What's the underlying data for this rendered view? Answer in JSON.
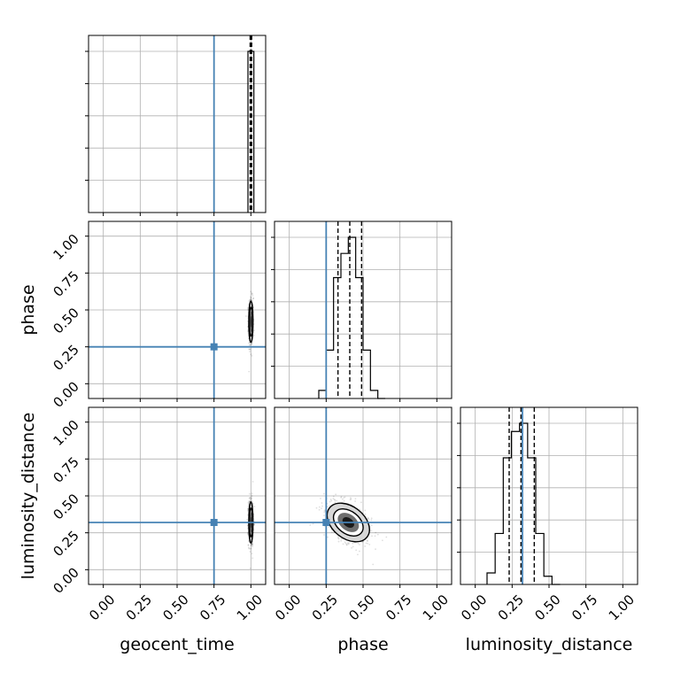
{
  "chart_data": {
    "type": "corner",
    "parameters": [
      "geocent_time",
      "phase",
      "luminosity_distance"
    ],
    "tick_values": [
      0.0,
      0.25,
      0.5,
      0.75,
      1.0
    ],
    "tick_labels": [
      "0.00",
      "0.25",
      "0.50",
      "0.75",
      "1.00"
    ],
    "axis_range": [
      -0.1,
      1.1
    ],
    "grid": true,
    "truths": {
      "geocent_time": 0.75,
      "phase": 0.25,
      "luminosity_distance": 0.32
    },
    "truth_color": "#4682b4",
    "histograms": {
      "geocent_time": {
        "bin_edges": [
          0.98,
          1.02
        ],
        "counts": [
          1.0
        ],
        "quantiles": [
          0.995,
          1.0,
          1.005
        ]
      },
      "phase": {
        "bin_edges": [
          0.2,
          0.25,
          0.3,
          0.35,
          0.4,
          0.45,
          0.5,
          0.55,
          0.6,
          0.65
        ],
        "counts": [
          0.05,
          0.3,
          0.75,
          0.9,
          1.0,
          0.75,
          0.3,
          0.05,
          0.0
        ],
        "quantiles": [
          0.33,
          0.41,
          0.49
        ]
      },
      "luminosity_distance": {
        "bin_edges": [
          0.08,
          0.135,
          0.19,
          0.245,
          0.3,
          0.355,
          0.41,
          0.465,
          0.52,
          0.575
        ],
        "counts": [
          0.07,
          0.31,
          0.77,
          0.93,
          0.98,
          0.77,
          0.31,
          0.05,
          0.0
        ],
        "quantiles": [
          0.23,
          0.31,
          0.4
        ]
      }
    },
    "joint": [
      {
        "x": "geocent_time",
        "y": "phase",
        "center": [
          1.0,
          0.42
        ],
        "spread": [
          0.007,
          0.07
        ],
        "corr": 0.0
      },
      {
        "x": "geocent_time",
        "y": "luminosity_distance",
        "center": [
          1.0,
          0.32
        ],
        "spread": [
          0.007,
          0.07
        ],
        "corr": 0.0
      },
      {
        "x": "phase",
        "y": "luminosity_distance",
        "center": [
          0.4,
          0.32
        ],
        "spread": [
          0.07,
          0.07
        ],
        "corr": -0.5
      }
    ]
  }
}
